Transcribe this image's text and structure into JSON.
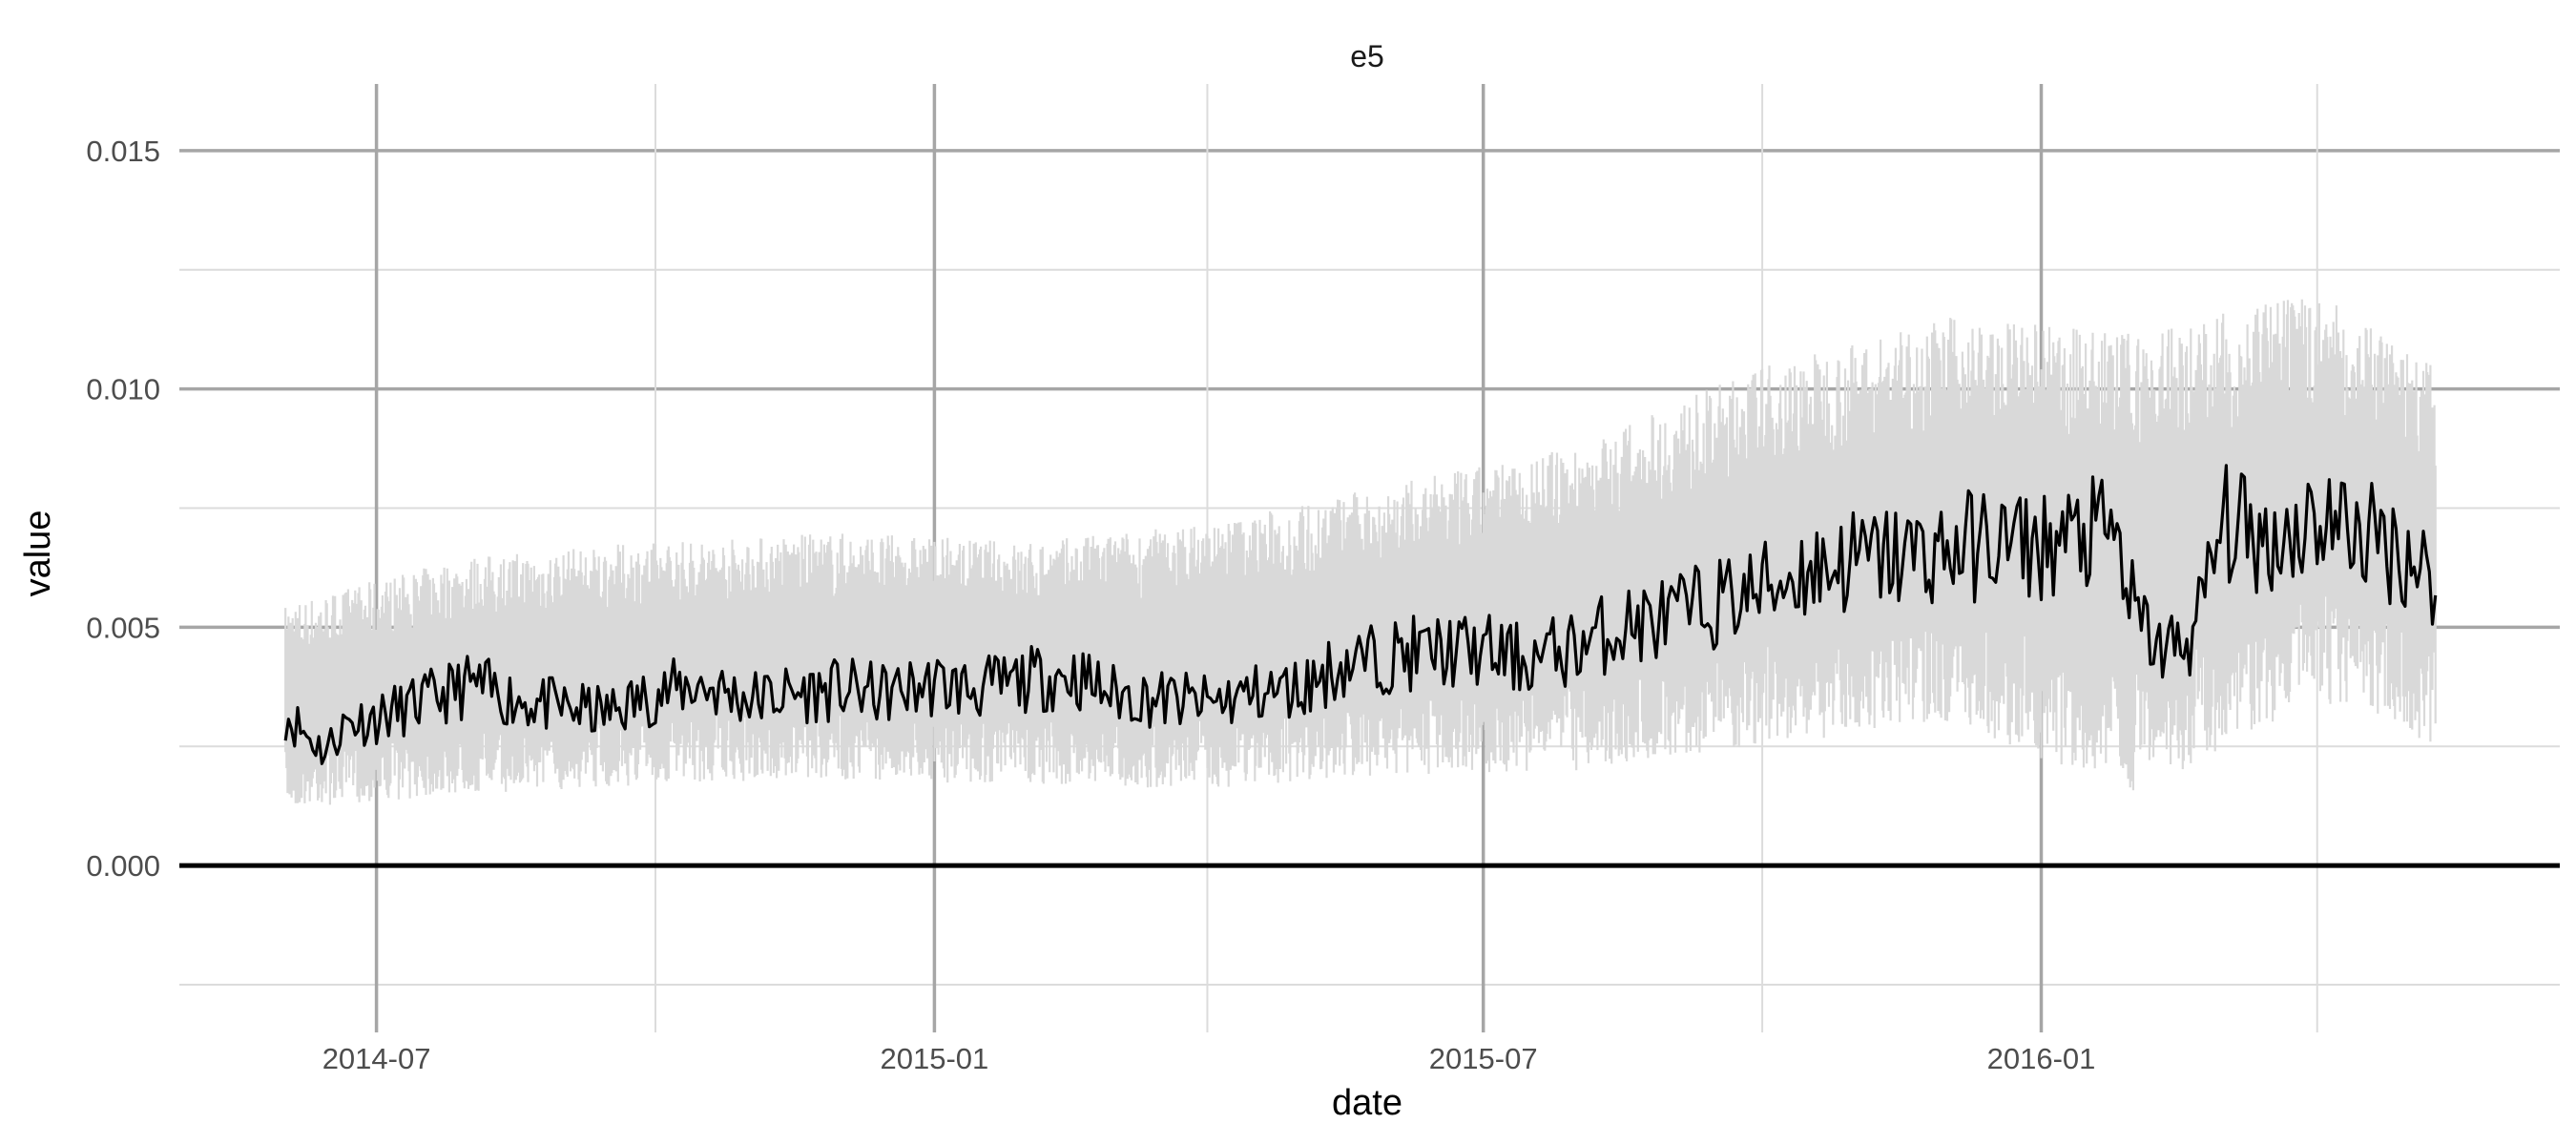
{
  "chart_data": {
    "type": "line",
    "title": "e5",
    "xlabel": "date",
    "ylabel": "value",
    "x_ticks": [
      "2014-07",
      "2015-01",
      "2015-07",
      "2016-01"
    ],
    "x_minor_ticks": [
      "2014-10",
      "2015-04",
      "2015-10",
      "2016-04"
    ],
    "xlim": [
      "2014-04-27",
      "2016-06-20"
    ],
    "y_ticks": [
      "0.000",
      "0.005",
      "0.010",
      "0.015"
    ],
    "y_values": [
      0,
      0.005,
      0.01,
      0.015
    ],
    "y_minor_values": [
      -0.0025,
      0.0025,
      0.0075,
      0.0125
    ],
    "ylim": [
      -0.0035,
      0.0164
    ],
    "grid": true,
    "reference_line": 0,
    "series": [
      {
        "role": "daily_band",
        "color": "#d9d9d9",
        "x": [
          "2014-06-01",
          "2014-08-01",
          "2014-10-01",
          "2014-12-01",
          "2015-02-01",
          "2015-04-01",
          "2015-06-01",
          "2015-08-01",
          "2015-10-01",
          "2015-12-01",
          "2016-02-01",
          "2016-04-01",
          "2016-05-10"
        ],
        "low": [
          0.0012,
          0.0015,
          0.0017,
          0.0018,
          0.0017,
          0.0016,
          0.0019,
          0.002,
          0.0025,
          0.003,
          0.0015,
          0.0035,
          0.0025
        ],
        "high": [
          0.0055,
          0.0065,
          0.0068,
          0.007,
          0.0068,
          0.0072,
          0.008,
          0.0088,
          0.0105,
          0.0115,
          0.0112,
          0.012,
          0.0105
        ]
      },
      {
        "role": "smoothed_value",
        "color": "#000000",
        "x": [
          "2014-06-01",
          "2014-06-07",
          "2014-06-14",
          "2014-06-21",
          "2014-07-01",
          "2014-07-15",
          "2014-08-01",
          "2014-08-15",
          "2014-09-01",
          "2014-09-15",
          "2014-10-01",
          "2014-10-15",
          "2014-11-01",
          "2014-11-15",
          "2014-12-01",
          "2014-12-15",
          "2015-01-01",
          "2015-01-15",
          "2015-02-01",
          "2015-02-15",
          "2015-03-01",
          "2015-03-15",
          "2015-04-01",
          "2015-04-15",
          "2015-05-01",
          "2015-05-15",
          "2015-06-01",
          "2015-06-15",
          "2015-07-01",
          "2015-07-15",
          "2015-08-01",
          "2015-08-15",
          "2015-09-01",
          "2015-09-15",
          "2015-10-01",
          "2015-10-15",
          "2015-11-01",
          "2015-11-15",
          "2015-12-01",
          "2015-12-15",
          "2016-01-01",
          "2016-01-15",
          "2016-01-25",
          "2016-02-01",
          "2016-02-10",
          "2016-02-20",
          "2016-03-01",
          "2016-03-15",
          "2016-04-01",
          "2016-04-15",
          "2016-05-01",
          "2016-05-10"
        ],
        "y": [
          0.0032,
          0.0028,
          0.0024,
          0.003,
          0.0031,
          0.0034,
          0.0038,
          0.0035,
          0.0033,
          0.0032,
          0.0036,
          0.0038,
          0.0035,
          0.0036,
          0.0037,
          0.0036,
          0.0038,
          0.0037,
          0.0039,
          0.004,
          0.0036,
          0.0035,
          0.0034,
          0.0036,
          0.0037,
          0.0042,
          0.0044,
          0.0045,
          0.0045,
          0.0043,
          0.0046,
          0.005,
          0.0052,
          0.0055,
          0.0058,
          0.0062,
          0.0064,
          0.0065,
          0.0066,
          0.0068,
          0.0067,
          0.0069,
          0.007,
          0.0052,
          0.0045,
          0.0048,
          0.0072,
          0.0068,
          0.0073,
          0.007,
          0.0065,
          0.006
        ]
      }
    ]
  }
}
